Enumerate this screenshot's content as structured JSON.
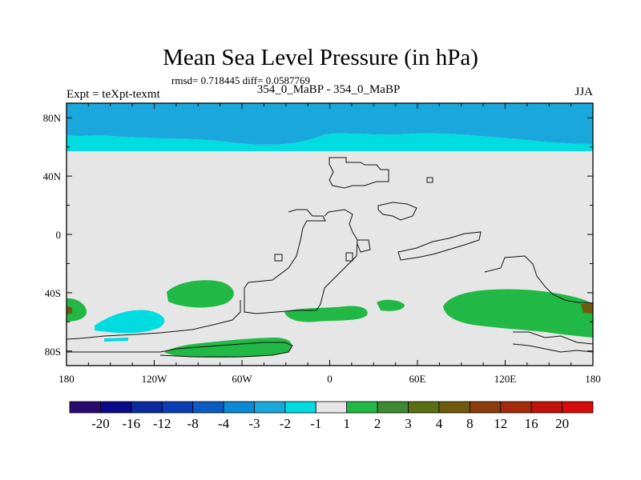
{
  "header": {
    "title": "Mean Sea Level Pressure (in hPa)",
    "stats": "rmsd= 0.718445 diff= 0.0587769",
    "experiment": "Expt = teXpt-texmt",
    "comparison": "354_0_MaBP - 354_0_MaBP",
    "season": "JJA"
  },
  "chart_data": {
    "type": "heatmap",
    "title": "Mean Sea Level Pressure (in hPa)",
    "projection": "cylindrical equidistant",
    "xlim": [
      -180,
      180
    ],
    "ylim": [
      -90,
      90
    ],
    "x_ticks": [
      {
        "value": -180,
        "label": "180"
      },
      {
        "value": -120,
        "label": "120W"
      },
      {
        "value": -60,
        "label": "60W"
      },
      {
        "value": 0,
        "label": "0"
      },
      {
        "value": 60,
        "label": "60E"
      },
      {
        "value": 120,
        "label": "120E"
      },
      {
        "value": 180,
        "label": "180"
      }
    ],
    "y_ticks": [
      {
        "value": 80,
        "label": "80N"
      },
      {
        "value": 40,
        "label": "40N"
      },
      {
        "value": 0,
        "label": "0"
      },
      {
        "value": -40,
        "label": "40S"
      },
      {
        "value": -80,
        "label": "80S"
      }
    ],
    "colorbar": {
      "levels": [
        "-20",
        "-16",
        "-12",
        "-8",
        "-4",
        "-3",
        "-2",
        "-1",
        "1",
        "2",
        "3",
        "4",
        "8",
        "12",
        "16",
        "20"
      ],
      "colors": [
        "#2a0a6e",
        "#0a0a8a",
        "#0a2a9e",
        "#0a3eb4",
        "#0a5cc4",
        "#0a8ad2",
        "#1aa8dc",
        "#00dce0",
        "#e6e6e6",
        "#22b845",
        "#3c8a32",
        "#5a6e14",
        "#6e5a0a",
        "#8a3c0a",
        "#a62a0a",
        "#c2120a",
        "#d80a0a"
      ]
    },
    "background_value_range": [
      -1,
      1
    ],
    "regions": [
      {
        "name": "arctic-band-outer",
        "value_range": [
          -3,
          -2
        ],
        "lon": [
          -180,
          180
        ],
        "lat": [
          63,
          90
        ]
      },
      {
        "name": "arctic-band-inner",
        "value_range": [
          -2,
          -1
        ],
        "lon": [
          -180,
          180
        ],
        "lat": [
          58,
          70
        ]
      },
      {
        "name": "south-pacific-low",
        "value_range": [
          -2,
          -1
        ],
        "lon": [
          -160,
          -115
        ],
        "lat": [
          -67,
          -52
        ]
      },
      {
        "name": "south-pacific-high",
        "value_range": [
          1,
          2
        ],
        "lon": [
          -110,
          -75
        ],
        "lat": [
          -42,
          -28
        ]
      },
      {
        "name": "southern-ocean-atlantic",
        "value_range": [
          1,
          2
        ],
        "lon": [
          -20,
          45
        ],
        "lat": [
          -60,
          -45
        ]
      },
      {
        "name": "southern-ocean-indian",
        "value_range": [
          1,
          2
        ],
        "lon": [
          80,
          180
        ],
        "lat": [
          -70,
          -35
        ]
      },
      {
        "name": "antarctic-coast",
        "value_range": [
          1,
          2
        ],
        "lon": [
          -115,
          -25
        ],
        "lat": [
          -85,
          -70
        ]
      },
      {
        "name": "dateline-high",
        "value_range": [
          1,
          3
        ],
        "lon": [
          -180,
          -165
        ],
        "lat": [
          -60,
          -40
        ]
      },
      {
        "name": "indian-ocean-peak",
        "value_range": [
          3,
          4
        ],
        "lon": [
          168,
          180
        ],
        "lat": [
          -55,
          -45
        ]
      }
    ]
  }
}
